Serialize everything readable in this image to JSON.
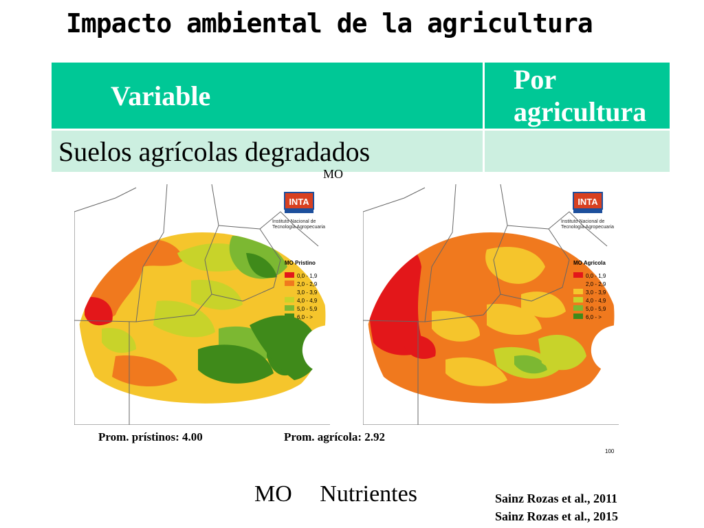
{
  "slide": {
    "title": "Impacto ambiental de la agricultura"
  },
  "table": {
    "headers": [
      "Variable",
      "Por agricultura"
    ],
    "rows": [
      [
        "Suelos agrícolas degradados",
        ""
      ]
    ]
  },
  "mo_label": "MO",
  "maps": [
    {
      "logo": "INTA",
      "institute": [
        "Instituto Nacional de",
        "Tecnología Agropecuaria"
      ],
      "legend_title": "MO Pristino",
      "legend_items": [
        "0,0 - 1,9",
        "2,0 - 2,9",
        "3,0 - 3,9",
        "4,0 - 4,9",
        "5,0 - 5,9",
        "6,0 - >"
      ],
      "average": "Prom. prístinos: 4.00"
    },
    {
      "logo": "INTA",
      "institute": [
        "Instituto Nacional de",
        "Tecnología Agropecuaria"
      ],
      "legend_title": "MO Agricola",
      "legend_items": [
        "0,0 - 1,9",
        "2,0 - 2,9",
        "3,0 - 3,9",
        "4,0 - 4,9",
        "5,0 - 5,9",
        "6,0 - >"
      ],
      "average": "Prom. agrícola: 2.92"
    }
  ],
  "legend_colors": [
    "#e3171a",
    "#f0791e",
    "#f5c52c",
    "#c8d32a",
    "#7cb832",
    "#3f8a1a"
  ],
  "scale_mark": "100",
  "bottom_words": [
    "MO",
    "Nutrientes"
  ],
  "references": [
    "Sainz Rozas et al., 2011",
    "Sainz Rozas et al., 2015"
  ]
}
